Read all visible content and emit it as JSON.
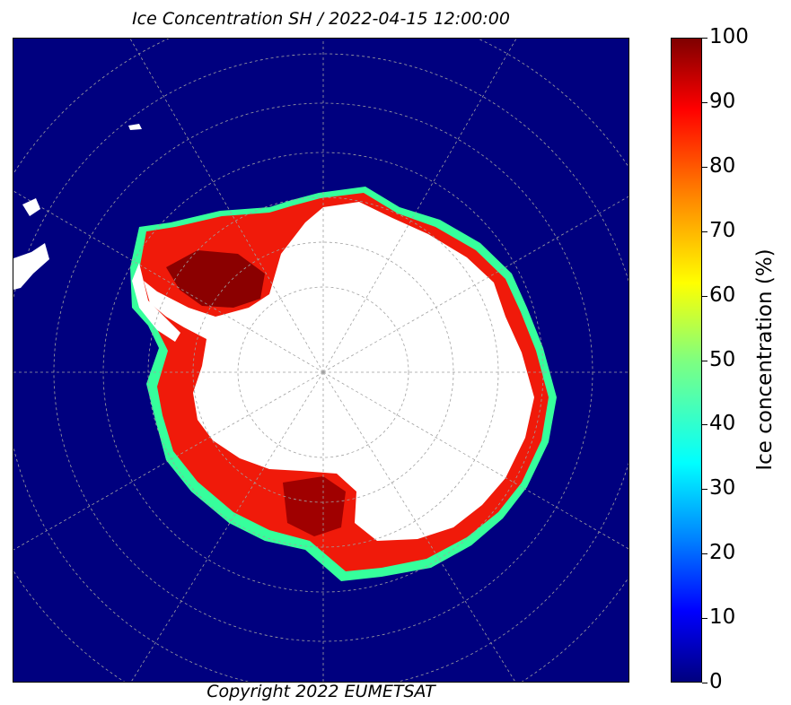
{
  "title": "Ice Concentration SH / 2022-04-15 12:00:00",
  "copyright": "Copyright 2022 EUMETSAT",
  "colorbar": {
    "label": "Ice concentration (%)",
    "ticks": [
      "100",
      "90",
      "80",
      "70",
      "60",
      "50",
      "40",
      "30",
      "20",
      "10",
      "0"
    ],
    "range": [
      0,
      100
    ]
  },
  "colors": {
    "ocean": "#00007f",
    "land": "#ffffff",
    "high_ice": "#7f0000",
    "mid_ice": "#ff0000",
    "edge_ice": "#ffff00"
  },
  "map": {
    "hemisphere": "SH",
    "projection": "polar stereographic",
    "date": "2022-04-15 12:00:00"
  }
}
